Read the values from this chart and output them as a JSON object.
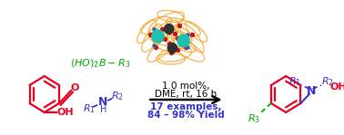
{
  "bg_color": "#ffffff",
  "red": "#e8001d",
  "green": "#00aa00",
  "blue": "#3333cc",
  "black": "#000000",
  "orange": "#f5a020",
  "teal": "#20c0b0",
  "dark_gray": "#303030",
  "dark_red": "#cc0000",
  "dark_blue": "#2244aa",
  "text1": "1.0 mol%,",
  "text2": "DME, rt, 16 h",
  "text3": "17 examples,",
  "text4": "84 – 98% Yield",
  "figsize": [
    3.78,
    1.49
  ],
  "dpi": 100
}
